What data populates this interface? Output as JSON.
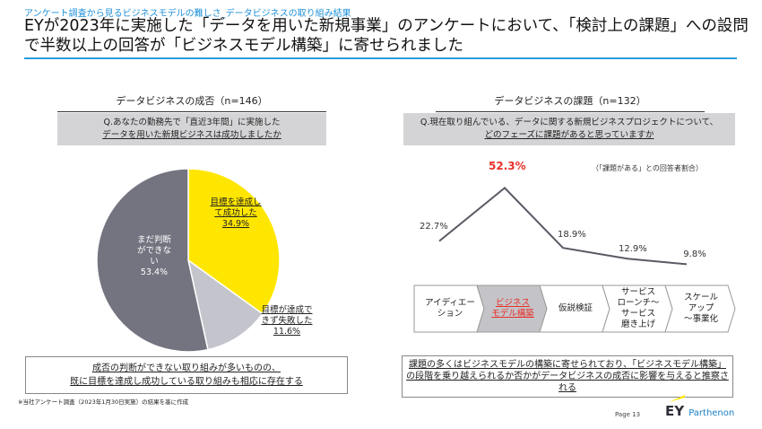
{
  "header": {
    "subtitle": "アンケート調査から見るビジネスモデルの難しさ_データビジネスの取り組み結果",
    "title": "EYが2023年に実施した「データを用いた新規事業」のアンケートにおいて、「検討上の課題」への設問で半数以上の回答が「ビジネスモデル構築」に寄せられました"
  },
  "left": {
    "section_title": "データビジネスの成否（n=146）",
    "question_line1": "Q.あなたの勤務先で「直近3年間」に実施した",
    "question_line2": "データを用いた新規ビジネスは成功しましたか",
    "conclusion_line1": "成否の判断ができない取り組みが多いものの、",
    "conclusion_line2": "既に目標を達成し成功している取り組みも相応に存在する"
  },
  "right": {
    "section_title": "データビジネスの課題（n=132）",
    "question_line1": "Q.現在取り組んでいる、データに関する新規ビジネスプロジェクトについて、",
    "question_line2": "どのフェーズに課題があると思っていますか",
    "note": "（「課題がある」との回答者割合）",
    "conclusion": "課題の多くはビジネスモデルの構築に寄せられており、「ビジネスモデル構築」の段階を乗り越えられるか否かがデータビジネスの成否に影響を与えると推察される"
  },
  "chart_data": [
    {
      "type": "pie",
      "title": "データビジネスの成否（n=146）",
      "slices": [
        {
          "label": "目標を達成して成功した",
          "value": 34.9,
          "display": "34.9%",
          "color": "#ffe600"
        },
        {
          "label": "目標が達成できず失敗した",
          "value": 11.6,
          "display": "11.6%",
          "color": "#c4c4cc"
        },
        {
          "label": "まだ判断ができない",
          "value": 53.4,
          "display": "53.4%",
          "color": "#747480"
        }
      ]
    },
    {
      "type": "line",
      "title": "データビジネスの課題（n=132）",
      "categories": [
        "アイディエーション",
        "ビジネスモデル構築",
        "仮説検証",
        "サービスローンチ～サービス磨き上げ",
        "スケールアップ～事業化"
      ],
      "values": [
        22.7,
        52.3,
        18.9,
        12.9,
        9.8
      ],
      "labels": [
        "22.7%",
        "52.3%",
        "18.9%",
        "12.9%",
        "9.8%"
      ],
      "highlight_index": 1,
      "highlight_color": "#e8302a"
    }
  ],
  "footer": {
    "source": "※当社アンケート調査（2023年1月30日実施）の結果を基に作成",
    "page": "Page 13",
    "logo_ey": "EY",
    "logo_parthenon": "Parthenon"
  }
}
